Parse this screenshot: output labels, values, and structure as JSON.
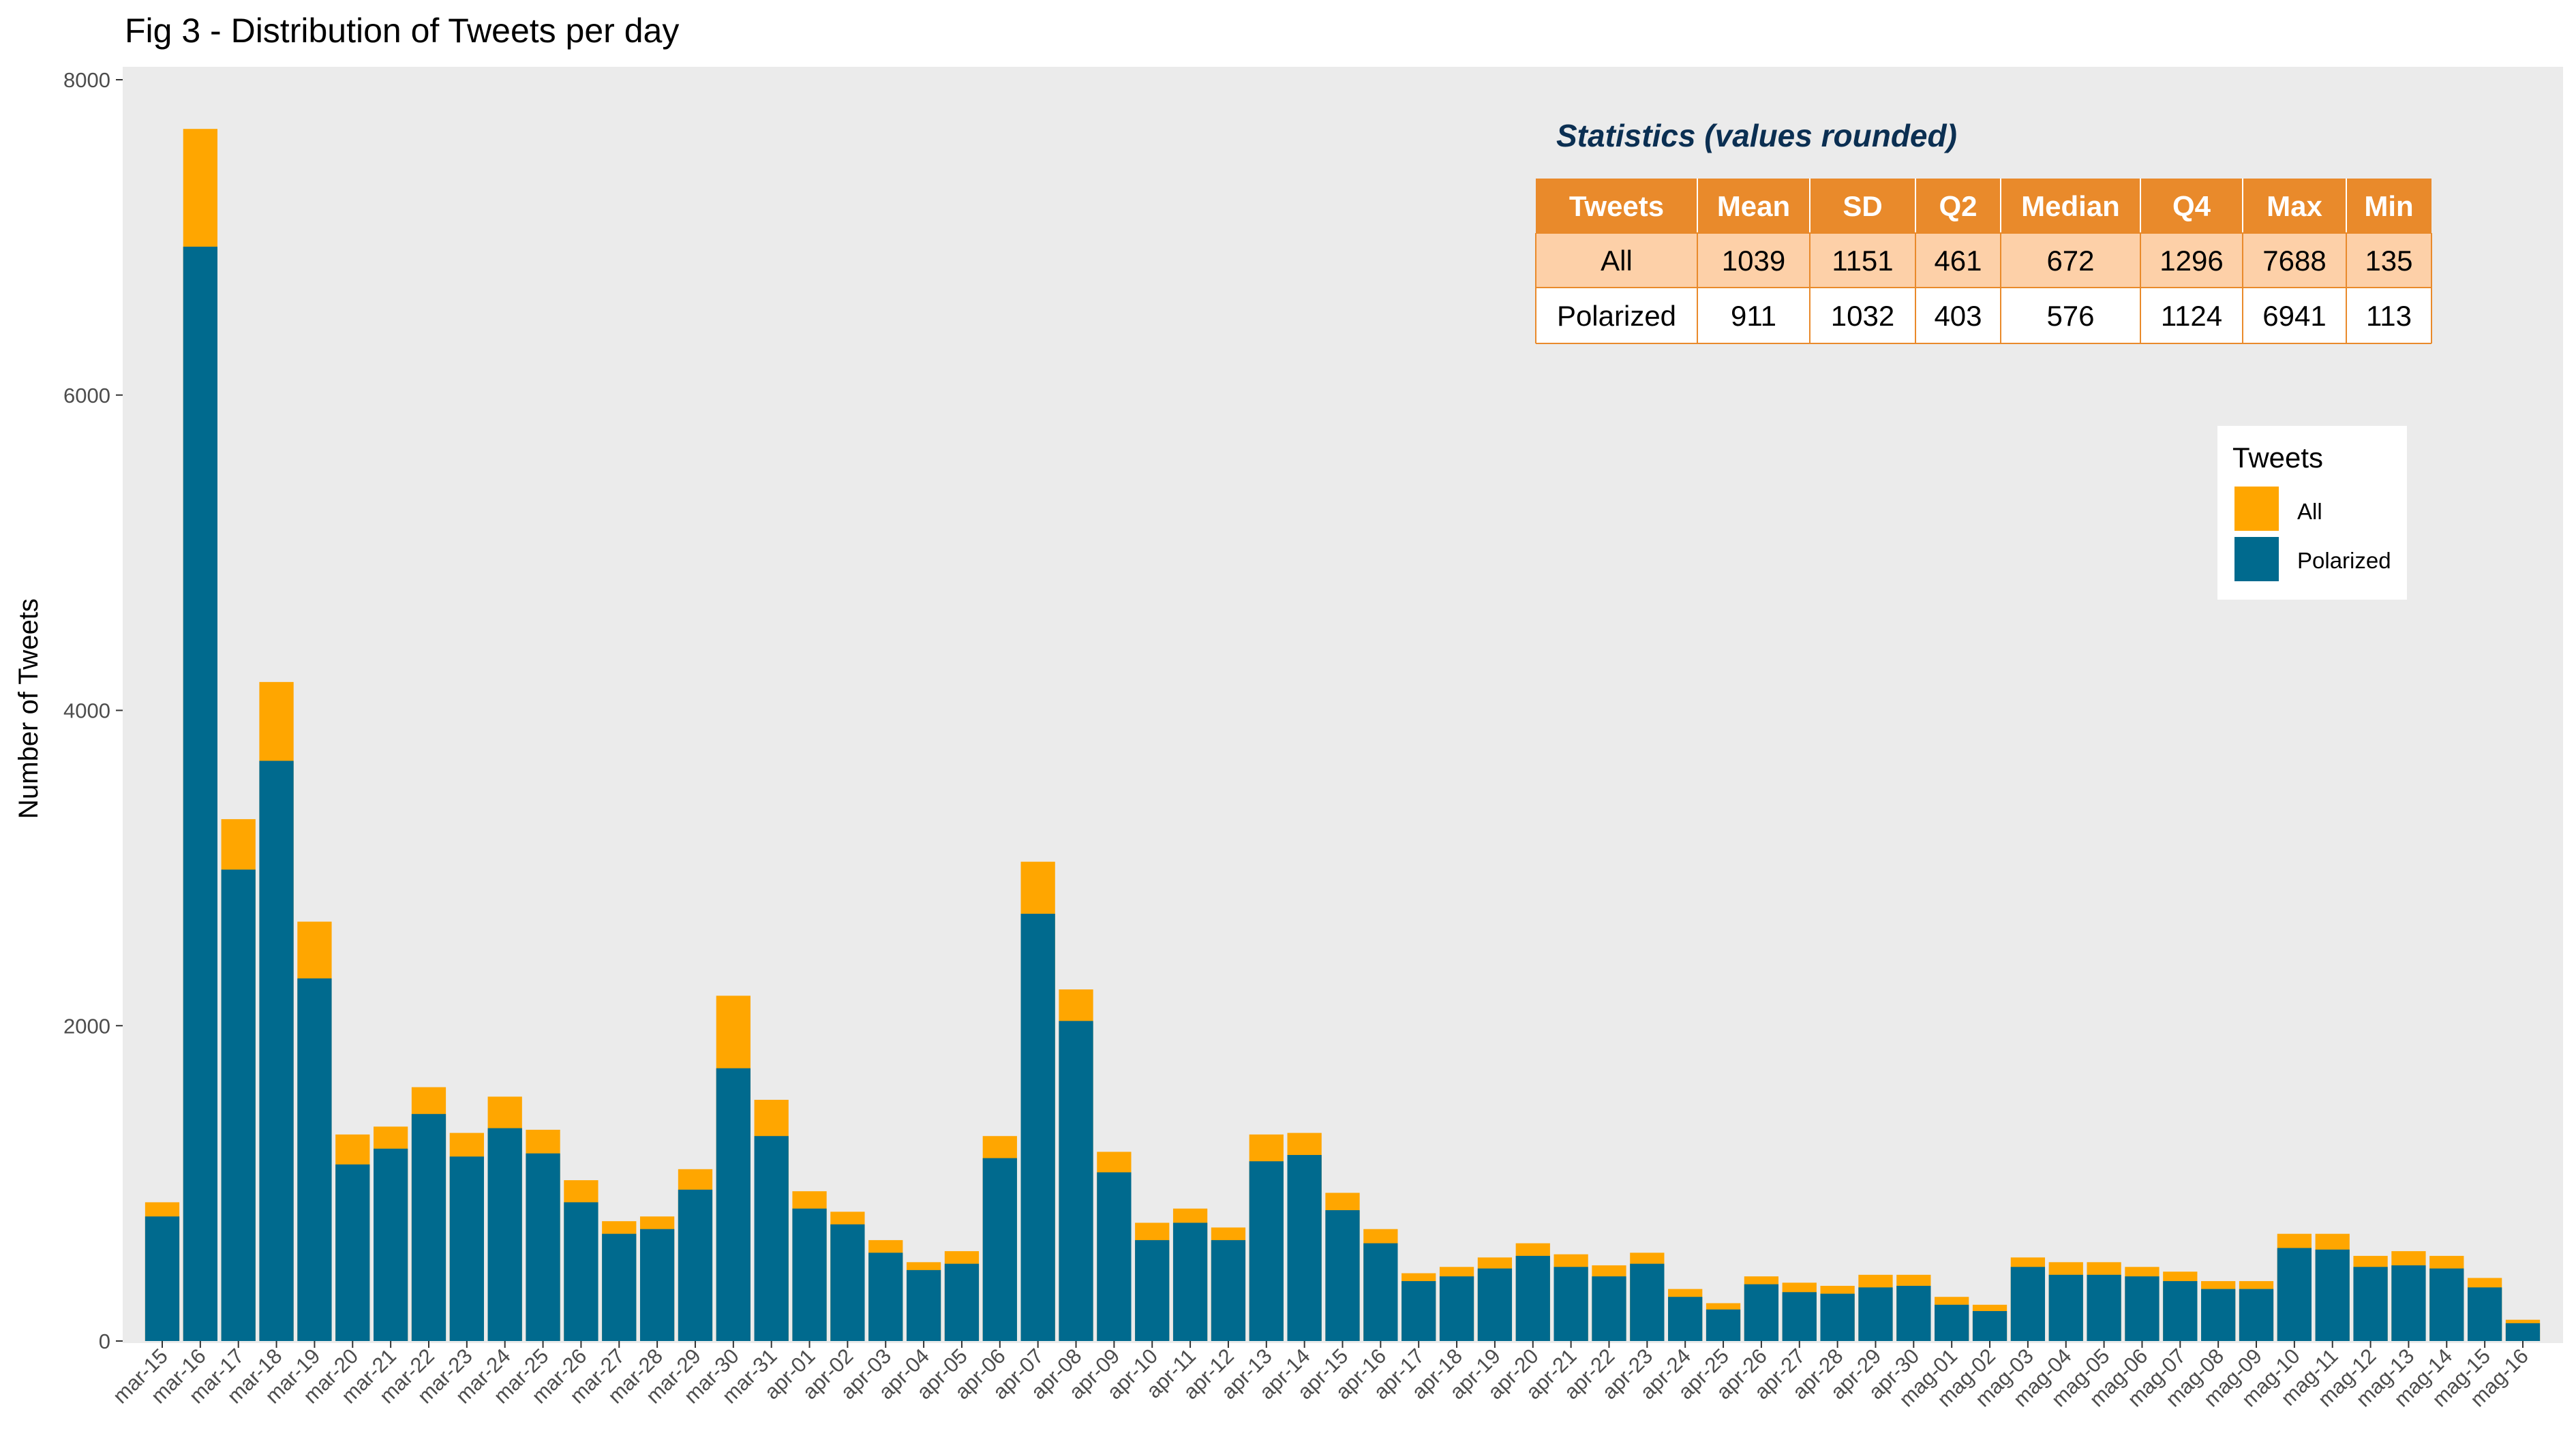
{
  "title": "Fig 3   - Distribution of Tweets per day",
  "colors": {
    "all": "#FFA600",
    "polarized": "#006A8E",
    "panel": "#EBEBEB",
    "table_header": "#E98A2B",
    "table_row_all": "#FDD0A8",
    "table_border": "#E98A2B"
  },
  "chart_data": {
    "type": "bar",
    "stacked": true,
    "xlabel": "",
    "ylabel": "Number of Tweets",
    "ylim": [
      0,
      8000
    ],
    "yticks": [
      0,
      2000,
      4000,
      6000,
      8000
    ],
    "grid": false,
    "legend": {
      "title": "Tweets",
      "position": "right",
      "items": [
        "All",
        "Polarized"
      ]
    },
    "categories": [
      "mar-15",
      "mar-16",
      "mar-17",
      "mar-18",
      "mar-19",
      "mar-20",
      "mar-21",
      "mar-22",
      "mar-23",
      "mar-24",
      "mar-25",
      "mar-26",
      "mar-27",
      "mar-28",
      "mar-29",
      "mar-30",
      "mar-31",
      "apr-01",
      "apr-02",
      "apr-03",
      "apr-04",
      "apr-05",
      "apr-06",
      "apr-07",
      "apr-08",
      "apr-09",
      "apr-10",
      "apr-11",
      "apr-12",
      "apr-13",
      "apr-14",
      "apr-15",
      "apr-16",
      "apr-17",
      "apr-18",
      "apr-19",
      "apr-20",
      "apr-21",
      "apr-22",
      "apr-23",
      "apr-24",
      "apr-25",
      "apr-26",
      "apr-27",
      "apr-28",
      "apr-29",
      "apr-30",
      "mag-01",
      "mag-02",
      "mag-03",
      "mag-04",
      "mag-05",
      "mag-06",
      "mag-07",
      "mag-08",
      "mag-09",
      "mag-10",
      "mag-11",
      "mag-12",
      "mag-13",
      "mag-14",
      "mag-15",
      "mag-16"
    ],
    "series": [
      {
        "name": "All",
        "values": [
          880,
          7688,
          3310,
          4180,
          2660,
          1310,
          1360,
          1610,
          1320,
          1550,
          1340,
          1020,
          760,
          790,
          1090,
          2190,
          1530,
          950,
          820,
          640,
          500,
          570,
          1300,
          3040,
          2230,
          1200,
          750,
          840,
          720,
          1310,
          1320,
          940,
          710,
          430,
          470,
          530,
          620,
          550,
          480,
          560,
          330,
          240,
          410,
          370,
          350,
          420,
          420,
          280,
          230,
          530,
          500,
          500,
          470,
          440,
          380,
          380,
          680,
          680,
          540,
          570,
          540,
          400,
          135
        ]
      },
      {
        "name": "Polarized",
        "values": [
          790,
          6941,
          2990,
          3680,
          2300,
          1120,
          1220,
          1440,
          1170,
          1350,
          1190,
          880,
          680,
          710,
          960,
          1730,
          1300,
          840,
          740,
          560,
          450,
          490,
          1160,
          2710,
          2030,
          1070,
          640,
          750,
          640,
          1140,
          1180,
          830,
          620,
          380,
          410,
          460,
          540,
          470,
          410,
          490,
          280,
          200,
          360,
          310,
          300,
          340,
          350,
          230,
          190,
          470,
          420,
          420,
          410,
          380,
          330,
          330,
          590,
          580,
          470,
          480,
          460,
          340,
          113
        ]
      }
    ]
  },
  "stats_table": {
    "title": "Statistics (values rounded)",
    "headers": [
      "Tweets",
      "Mean",
      "SD",
      "Q2",
      "Median",
      "Q4",
      "Max",
      "Min"
    ],
    "rows": [
      [
        "All",
        "1039",
        "1151",
        "461",
        "672",
        "1296",
        "7688",
        "135"
      ],
      [
        "Polarized",
        "911",
        "1032",
        "403",
        "576",
        "1124",
        "6941",
        "113"
      ]
    ]
  }
}
